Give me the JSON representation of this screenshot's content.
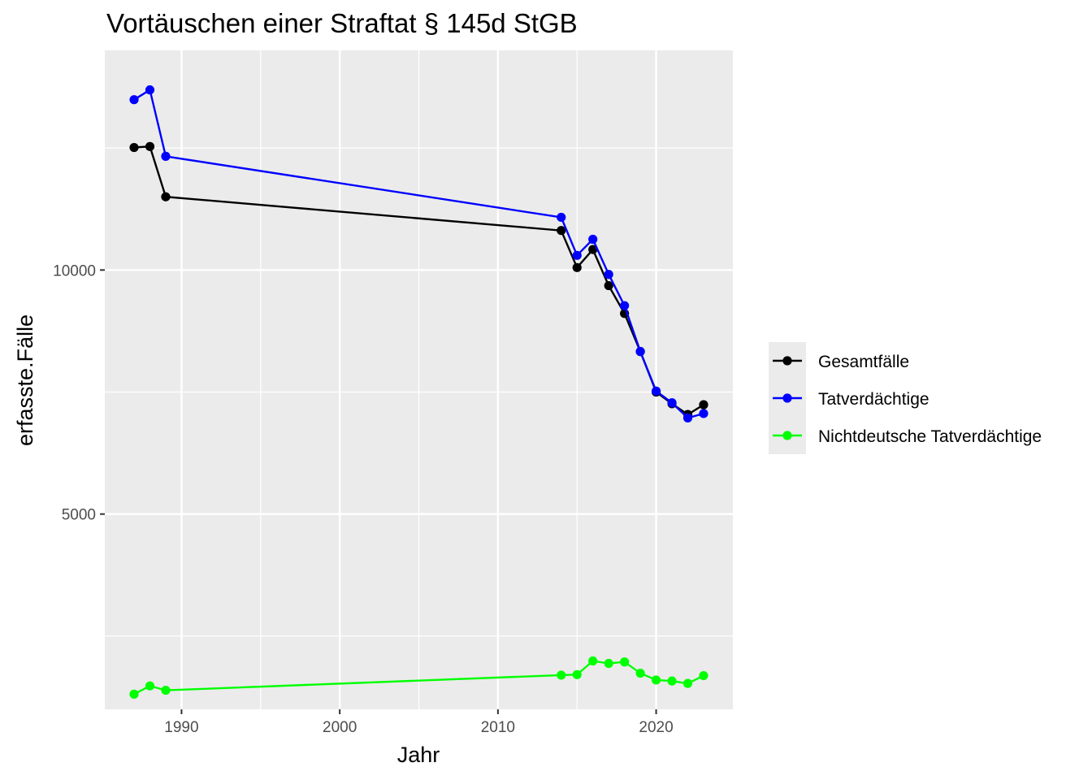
{
  "chart_data": {
    "type": "line",
    "title": "Vortäuschen einer Straftat § 145d StGB",
    "xlabel": "Jahr",
    "ylabel": "erfasste.Fälle",
    "x": [
      1987,
      1988,
      1989,
      2014,
      2015,
      2016,
      2017,
      2018,
      2019,
      2020,
      2021,
      2022,
      2023
    ],
    "series": [
      {
        "name": "Gesamtfälle",
        "color": "#000000",
        "values": [
          12510,
          12530,
          11500,
          10810,
          10050,
          10420,
          9680,
          9110,
          8330,
          7500,
          7260,
          7040,
          7240
        ]
      },
      {
        "name": "Tatverdächtige",
        "color": "#0000ff",
        "values": [
          13490,
          13690,
          12330,
          11080,
          10300,
          10630,
          9910,
          9270,
          8330,
          7520,
          7280,
          6970,
          7060
        ]
      },
      {
        "name": "Nichtdeutsche Tatverdächtige",
        "color": "#00ff00",
        "values": [
          1310,
          1480,
          1390,
          1700,
          1710,
          1990,
          1940,
          1970,
          1740,
          1600,
          1580,
          1530,
          1690
        ]
      }
    ],
    "xlim": [
      1985.15,
      2024.85
    ],
    "ylim": [
      1000,
      14500
    ],
    "x_ticks": [
      1990,
      2000,
      2010,
      2020
    ],
    "x_tick_labels": [
      "1990",
      "2000",
      "2010",
      "2020"
    ],
    "y_ticks": [
      5000,
      10000
    ],
    "y_tick_labels": [
      "5000",
      "10000"
    ],
    "x_minor": [
      1995,
      2005,
      2015
    ],
    "y_minor": [
      2500,
      7500,
      12500
    ],
    "grid": true,
    "legend_position": "right"
  }
}
